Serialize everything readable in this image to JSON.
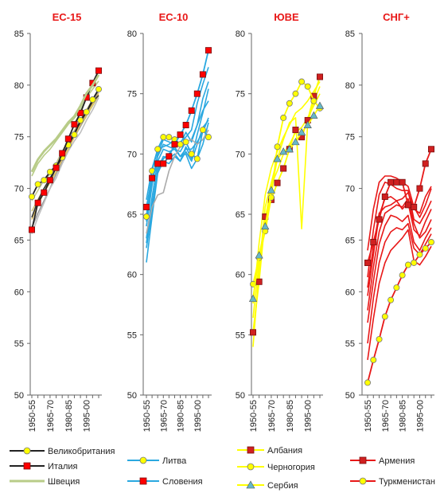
{
  "chart_data": [
    {
      "type": "line",
      "title": "ЕС-15",
      "categories": [
        "1950-55",
        "1955-60",
        "1960-65",
        "1965-70",
        "1970-75",
        "1975-80",
        "1980-85",
        "1985-90",
        "1990-95",
        "1995-00",
        "2000-05",
        "2005-10"
      ],
      "tick_labels": [
        "1950-55",
        "1965-70",
        "1980-85",
        "1995-00"
      ],
      "yticks": [
        "85",
        "80",
        "75",
        "70",
        "65",
        "60",
        "55",
        "50"
      ],
      "ylim": [
        50,
        85
      ],
      "grid": false,
      "series": [
        {
          "name": "Великобритания",
          "color": "#222222",
          "marker": "circle",
          "marker_fill": "#ffff00",
          "values": [
            69.2,
            70.4,
            70.8,
            71.6,
            72.2,
            73.0,
            74.2,
            75.2,
            76.6,
            77.4,
            78.6,
            79.6
          ]
        },
        {
          "name": "Италия",
          "color": "#222222",
          "marker": "square",
          "marker_fill": "#ff0000",
          "values": [
            66.0,
            68.6,
            69.6,
            70.8,
            72.0,
            73.4,
            74.8,
            76.2,
            77.3,
            78.8,
            80.2,
            81.4
          ]
        },
        {
          "name": "Швеция",
          "color": "#b8cc88",
          "marker": "none",
          "marker_fill": "",
          "values": [
            71.6,
            72.8,
            73.6,
            74.2,
            74.8,
            75.6,
            76.4,
            77.0,
            78.0,
            79.2,
            80.0,
            81.0
          ]
        }
      ],
      "background": [
        {
          "color": "#b8cc88",
          "values": [
            71.2,
            72.4,
            73.2,
            73.8,
            74.6,
            75.4,
            76.2,
            76.8,
            77.6,
            78.8,
            79.6,
            80.4
          ]
        },
        {
          "color": "#c8cc90",
          "values": [
            68.8,
            69.8,
            70.8,
            71.4,
            72.4,
            73.6,
            74.6,
            75.6,
            76.6,
            77.6,
            78.6,
            79.4
          ]
        },
        {
          "color": "#d4c878",
          "values": [
            67.8,
            68.9,
            70.0,
            70.8,
            72.0,
            73.0,
            74.2,
            75.0,
            76.0,
            77.0,
            78.0,
            79.0
          ]
        },
        {
          "color": "#9a9a9a",
          "values": [
            66.2,
            67.6,
            68.8,
            70.0,
            71.4,
            72.6,
            73.8,
            75.0,
            76.0,
            77.2,
            78.4,
            79.4
          ]
        },
        {
          "color": "#c0c0c0",
          "values": [
            65.6,
            67.2,
            68.6,
            70.0,
            71.0,
            72.4,
            73.6,
            74.6,
            75.4,
            76.6,
            77.6,
            78.8
          ]
        },
        {
          "color": "#e0c060",
          "values": [
            67.0,
            68.4,
            69.6,
            70.6,
            71.6,
            72.8,
            73.8,
            75.0,
            76.2,
            77.2,
            78.2,
            79.2
          ]
        },
        {
          "color": "#333333",
          "values": [
            67.2,
            68.8,
            70.0,
            71.0,
            72.0,
            73.0,
            74.4,
            75.4,
            76.4,
            77.4,
            78.4,
            79.0
          ]
        }
      ]
    },
    {
      "type": "line",
      "title": "ЕС-10",
      "categories": [
        "1950-55",
        "1955-60",
        "1960-65",
        "1965-70",
        "1970-75",
        "1975-80",
        "1980-85",
        "1985-90",
        "1990-95",
        "1995-00",
        "2000-05",
        "2005-10"
      ],
      "tick_labels": [
        "1950-55",
        "1965-70",
        "1980-85",
        "1995-00"
      ],
      "yticks": [
        "80",
        "75",
        "70",
        "65",
        "60",
        "55",
        "50"
      ],
      "ylim": [
        50,
        80
      ],
      "grid": false,
      "series": [
        {
          "name": "Литва",
          "color": "#2aa8e0",
          "marker": "circle",
          "marker_fill": "#ffff00",
          "values": [
            64.8,
            68.6,
            70.4,
            71.4,
            71.4,
            71.2,
            70.8,
            71.0,
            70.0,
            69.6,
            72.0,
            71.4
          ]
        },
        {
          "name": "Словения",
          "color": "#2aa8e0",
          "marker": "square",
          "marker_fill": "#ff0000",
          "values": [
            65.6,
            68.0,
            69.2,
            69.2,
            69.8,
            70.8,
            71.6,
            72.4,
            73.6,
            75.0,
            76.6,
            78.6
          ]
        }
      ],
      "background": [
        {
          "color": "#2aa8e0",
          "values": [
            63.0,
            66.4,
            69.4,
            70.4,
            70.2,
            70.4,
            70.2,
            71.0,
            71.2,
            72.4,
            73.6,
            74.4
          ]
        },
        {
          "color": "#2aa8e0",
          "values": [
            62.2,
            65.2,
            68.8,
            69.8,
            69.6,
            70.0,
            69.4,
            70.6,
            69.6,
            71.6,
            73.4,
            75.4
          ]
        },
        {
          "color": "#2aa8e0",
          "values": [
            61.0,
            64.8,
            68.4,
            69.4,
            69.2,
            69.8,
            69.4,
            70.2,
            69.4,
            70.8,
            72.2,
            72.8
          ]
        },
        {
          "color": "#2aa8e0",
          "values": [
            64.0,
            67.4,
            70.0,
            71.2,
            71.0,
            70.8,
            71.0,
            71.4,
            72.0,
            74.2,
            75.8,
            77.2
          ]
        },
        {
          "color": "#2aa8e0",
          "values": [
            66.2,
            68.8,
            70.4,
            70.6,
            70.8,
            71.2,
            70.8,
            71.8,
            71.0,
            72.4,
            74.6,
            76.0
          ]
        },
        {
          "color": "#2aa8e0",
          "values": [
            62.6,
            65.8,
            68.6,
            69.6,
            70.0,
            70.6,
            69.8,
            70.4,
            70.4,
            71.0,
            71.8,
            73.0
          ]
        },
        {
          "color": "#2aa8e0",
          "values": [
            64.4,
            67.8,
            69.8,
            70.8,
            70.6,
            70.4,
            69.8,
            70.0,
            68.8,
            69.6,
            70.8,
            72.6
          ]
        },
        {
          "color": "#aaaaaa",
          "values": [
            63.4,
            65.6,
            66.6,
            66.8,
            68.6,
            69.8,
            70.6,
            71.0,
            71.2,
            70.8,
            71.2,
            72.0
          ]
        }
      ]
    },
    {
      "type": "line",
      "title": "ЮВЕ",
      "categories": [
        "1950-55",
        "1955-60",
        "1960-65",
        "1965-70",
        "1970-75",
        "1975-80",
        "1980-85",
        "1985-90",
        "1990-95",
        "1995-00",
        "2000-05",
        "2005-10"
      ],
      "tick_labels": [
        "1950-55",
        "1965-70",
        "1980-85",
        "1995-00"
      ],
      "yticks": [
        "80",
        "75",
        "70",
        "65",
        "60",
        "55",
        "50"
      ],
      "ylim": [
        50,
        80
      ],
      "grid": false,
      "series": [
        {
          "name": "Албания",
          "color": "#ffff00",
          "marker": "square",
          "marker_fill": "#d02020",
          "values": [
            55.2,
            59.4,
            64.8,
            66.2,
            67.6,
            68.8,
            70.4,
            72.0,
            71.4,
            72.8,
            74.8,
            76.4
          ]
        },
        {
          "name": "Черногория",
          "color": "#ffff00",
          "marker": "circle",
          "marker_fill": "#ffff00",
          "values": [
            59.2,
            61.4,
            63.6,
            66.4,
            70.6,
            73.0,
            74.2,
            75.0,
            76.0,
            75.6,
            74.4,
            73.8
          ]
        },
        {
          "name": "Сербия",
          "color": "#ffff00",
          "marker": "triangle",
          "marker_fill": "#66b8c8",
          "values": [
            58.0,
            61.6,
            64.0,
            67.0,
            69.6,
            70.2,
            70.4,
            71.0,
            71.8,
            72.4,
            73.2,
            74.0
          ]
        }
      ],
      "background": [
        {
          "color": "#ffff00",
          "values": [
            54.0,
            60.4,
            65.6,
            67.6,
            69.6,
            71.2,
            72.6,
            73.0,
            63.8,
            72.6,
            74.4,
            75.6
          ]
        },
        {
          "color": "#ffff00",
          "values": [
            57.6,
            62.6,
            66.6,
            68.8,
            70.2,
            71.4,
            72.4,
            73.4,
            73.8,
            74.4,
            75.2,
            76.0
          ]
        },
        {
          "color": "#ffff00",
          "values": [
            56.4,
            61.0,
            64.6,
            67.4,
            68.6,
            70.0,
            70.8,
            71.8,
            72.2,
            73.0,
            74.0,
            75.0
          ]
        }
      ]
    },
    {
      "type": "line",
      "title": "СНГ+",
      "categories": [
        "1950-55",
        "1955-60",
        "1960-65",
        "1965-70",
        "1970-75",
        "1975-80",
        "1980-85",
        "1985-90",
        "1990-95",
        "1995-00",
        "2000-05",
        "2005-10"
      ],
      "tick_labels": [
        "1950-55",
        "1965-70",
        "1980-85",
        "1995-00"
      ],
      "yticks": [
        "85",
        "80",
        "75",
        "70",
        "65",
        "60",
        "55",
        "50"
      ],
      "ylim": [
        50,
        85
      ],
      "grid": false,
      "series": [
        {
          "name": "Армения",
          "color": "#e81818",
          "marker": "square",
          "marker_fill": "#d02020",
          "values": [
            62.8,
            64.8,
            67.0,
            69.2,
            70.6,
            70.6,
            70.6,
            68.4,
            68.2,
            70.0,
            72.4,
            73.8
          ]
        },
        {
          "name": "Туркменистан",
          "color": "#e81818",
          "marker": "circle",
          "marker_fill": "#ffff00",
          "values": [
            51.2,
            53.4,
            55.4,
            57.6,
            59.2,
            60.4,
            61.6,
            62.6,
            62.8,
            63.6,
            64.2,
            64.8
          ]
        }
      ],
      "background": [
        {
          "color": "#e81818",
          "values": [
            64.0,
            68.0,
            70.6,
            71.2,
            71.2,
            71.0,
            70.6,
            70.2,
            68.2,
            67.2,
            68.4,
            70.0
          ]
        },
        {
          "color": "#e81818",
          "values": [
            61.4,
            66.0,
            69.4,
            70.6,
            70.4,
            70.0,
            69.8,
            69.8,
            67.0,
            66.6,
            67.6,
            68.8
          ]
        },
        {
          "color": "#e81818",
          "values": [
            59.6,
            63.6,
            67.4,
            69.0,
            69.2,
            68.8,
            68.0,
            68.6,
            66.0,
            65.4,
            66.8,
            68.0
          ]
        },
        {
          "color": "#e81818",
          "values": [
            58.2,
            62.4,
            65.8,
            67.6,
            68.0,
            68.4,
            68.2,
            69.0,
            66.6,
            65.2,
            65.8,
            67.0
          ]
        },
        {
          "color": "#e81818",
          "values": [
            57.0,
            61.0,
            64.6,
            66.4,
            67.4,
            67.2,
            66.8,
            67.4,
            64.8,
            64.0,
            65.2,
            66.2
          ]
        },
        {
          "color": "#e81818",
          "values": [
            55.0,
            59.4,
            62.8,
            64.8,
            65.8,
            66.2,
            66.0,
            66.6,
            64.2,
            63.6,
            64.6,
            65.6
          ]
        },
        {
          "color": "#e81818",
          "values": [
            53.4,
            57.4,
            60.8,
            62.8,
            64.0,
            64.6,
            65.2,
            66.0,
            63.0,
            62.6,
            63.4,
            64.4
          ]
        },
        {
          "color": "#e81818",
          "values": [
            60.4,
            64.4,
            67.6,
            68.2,
            68.4,
            68.8,
            69.0,
            69.6,
            68.0,
            67.6,
            69.2,
            70.2
          ]
        }
      ]
    }
  ]
}
